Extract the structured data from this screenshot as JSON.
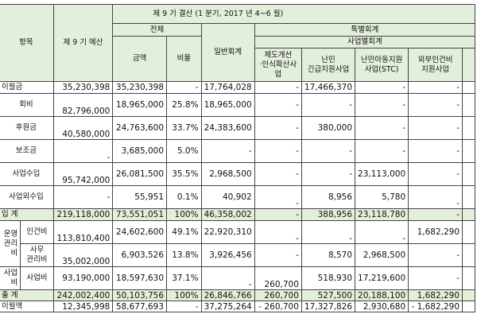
{
  "header": {
    "item": "항목",
    "budget": "제 9 기 예산",
    "settlement": "제 9 기 결산 (1 분기, 2017 년 4~6 월)",
    "total": "전체",
    "amount": "금액",
    "ratio": "비율",
    "general": "일반회계",
    "special": "특별회계",
    "by_project": "사업별회계",
    "proj": [
      "제도개선\n·인식확산사\n업",
      "난민\n긴급지원사업",
      "난민아동지원\n사업(STC)",
      "외부인건비\n지원사업"
    ]
  },
  "rows": [
    {
      "label": "이월금",
      "v": [
        "35,230,398",
        "35,230,398",
        "-",
        "17,764,028",
        "-",
        "17,466,370",
        "-",
        "-"
      ]
    },
    {
      "label": "회비",
      "v": [
        "82,796,000",
        "18,965,000",
        "25.8%",
        "18,965,000",
        "-",
        "-",
        "-",
        "-"
      ]
    },
    {
      "label": "후원금",
      "v": [
        "40,580,000",
        "24,763,600",
        "33.7%",
        "24,383,600",
        "-",
        "380,000",
        "-",
        "-"
      ]
    },
    {
      "label": "보조금",
      "v": [
        "-",
        "3,685,000",
        "5.0%",
        "-",
        "-",
        "-",
        "-",
        "-"
      ]
    },
    {
      "label": "사업수입",
      "v": [
        "95,742,000",
        "26,081,500",
        "35.5%",
        "2,968,500",
        "-",
        "-",
        "23,113,000",
        "-"
      ]
    },
    {
      "label": "사업외수입",
      "v": [
        "-",
        "55,951",
        "0.1%",
        "40,902",
        "-",
        "8,956",
        "5,780",
        "-"
      ]
    },
    {
      "label": "입 계",
      "v": [
        "219,118,000",
        "73,551,051",
        "100%",
        "46,358,002",
        "-",
        "388,956",
        "23,118,780",
        "-"
      ]
    },
    {
      "group": "운영\n관리비",
      "label": "인건비",
      "v": [
        "113,810,400",
        "24,602,600",
        "49.1%",
        "22,920,310",
        "-",
        "-",
        "-",
        "1,682,290"
      ]
    },
    {
      "label": "사무\n관리비",
      "v": [
        "35,002,000",
        "6,903,526",
        "13.8%",
        "3,926,456",
        "-",
        "8,570",
        "2,968,500",
        "-"
      ]
    },
    {
      "group": "사업비",
      "label": "사업비",
      "v": [
        "93,190,000",
        "18,597,630",
        "37.1%",
        "-",
        "260,700",
        "518,930",
        "17,219,600",
        "-"
      ]
    },
    {
      "label": "출 계",
      "v": [
        "242,002,400",
        "50,103,756",
        "100%",
        "26,846,766",
        "260,700",
        "527,500",
        "20,188,100",
        "1,682,290"
      ]
    },
    {
      "label": "이월액",
      "v": [
        "12,345,998",
        "58,677,693",
        "-",
        "37,275,264",
        "- 260,700",
        "17,327,826",
        "2,930,680",
        "- 1,682,290"
      ]
    }
  ]
}
